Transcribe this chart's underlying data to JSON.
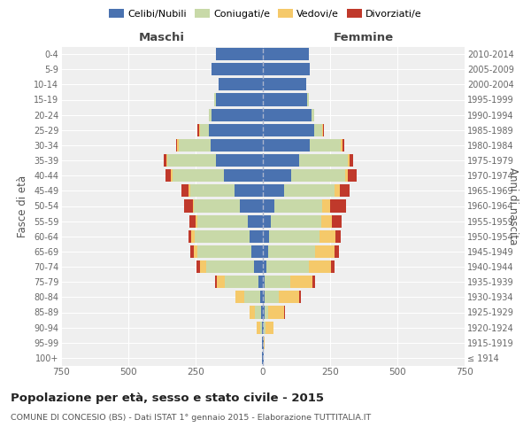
{
  "age_groups": [
    "100+",
    "95-99",
    "90-94",
    "85-89",
    "80-84",
    "75-79",
    "70-74",
    "65-69",
    "60-64",
    "55-59",
    "50-54",
    "45-49",
    "40-44",
    "35-39",
    "30-34",
    "25-29",
    "20-24",
    "15-19",
    "10-14",
    "5-9",
    "0-4"
  ],
  "birth_years": [
    "≤ 1914",
    "1915-1919",
    "1920-1924",
    "1925-1929",
    "1930-1934",
    "1935-1939",
    "1940-1944",
    "1945-1949",
    "1950-1954",
    "1955-1959",
    "1960-1964",
    "1965-1969",
    "1970-1974",
    "1975-1979",
    "1980-1984",
    "1985-1989",
    "1990-1994",
    "1995-1999",
    "2000-2004",
    "2005-2009",
    "2010-2014"
  ],
  "colors": {
    "celibe": "#4a72b0",
    "coniugato": "#c8d9a8",
    "vedovo": "#f5c96a",
    "divorziato": "#c0392b"
  },
  "maschi": {
    "celibe": [
      2,
      2,
      4,
      6,
      10,
      18,
      32,
      42,
      48,
      55,
      85,
      105,
      145,
      175,
      195,
      200,
      190,
      175,
      165,
      190,
      175
    ],
    "coniugato": [
      0,
      0,
      6,
      22,
      60,
      125,
      180,
      200,
      205,
      190,
      170,
      165,
      190,
      180,
      118,
      32,
      12,
      5,
      0,
      0,
      0
    ],
    "vedovo": [
      0,
      2,
      12,
      22,
      32,
      28,
      22,
      16,
      12,
      6,
      6,
      6,
      6,
      5,
      5,
      5,
      0,
      0,
      0,
      0,
      0
    ],
    "divorziato": [
      0,
      0,
      0,
      0,
      0,
      6,
      12,
      12,
      10,
      22,
      32,
      28,
      22,
      10,
      6,
      5,
      0,
      0,
      0,
      0,
      0
    ]
  },
  "femmine": {
    "nubile": [
      2,
      2,
      4,
      5,
      6,
      8,
      14,
      20,
      22,
      28,
      42,
      78,
      105,
      135,
      175,
      190,
      180,
      165,
      160,
      175,
      170
    ],
    "coniugata": [
      0,
      0,
      6,
      16,
      52,
      95,
      158,
      175,
      190,
      190,
      180,
      190,
      200,
      180,
      115,
      32,
      12,
      5,
      0,
      0,
      0
    ],
    "vedova": [
      2,
      6,
      28,
      58,
      78,
      82,
      82,
      72,
      58,
      38,
      28,
      18,
      12,
      6,
      5,
      2,
      0,
      0,
      0,
      0,
      0
    ],
    "divorziata": [
      0,
      0,
      0,
      2,
      6,
      8,
      12,
      16,
      20,
      38,
      58,
      38,
      32,
      14,
      6,
      2,
      0,
      0,
      0,
      0,
      0
    ]
  },
  "xlim": 750,
  "title": "Popolazione per età, sesso e stato civile - 2015",
  "subtitle": "COMUNE DI CONCESIO (BS) - Dati ISTAT 1° gennaio 2015 - Elaborazione TUTTITALIA.IT",
  "xlabel_left": "Maschi",
  "xlabel_right": "Femmine",
  "ylabel_left": "Fasce di età",
  "ylabel_right": "Anni di nascita",
  "legend_labels": [
    "Celibi/Nubili",
    "Coniugati/e",
    "Vedovi/e",
    "Divorziati/e"
  ],
  "bg_color": "#efefef",
  "grid_color": "#ffffff",
  "title_color": "#222222",
  "sub_color": "#555555"
}
